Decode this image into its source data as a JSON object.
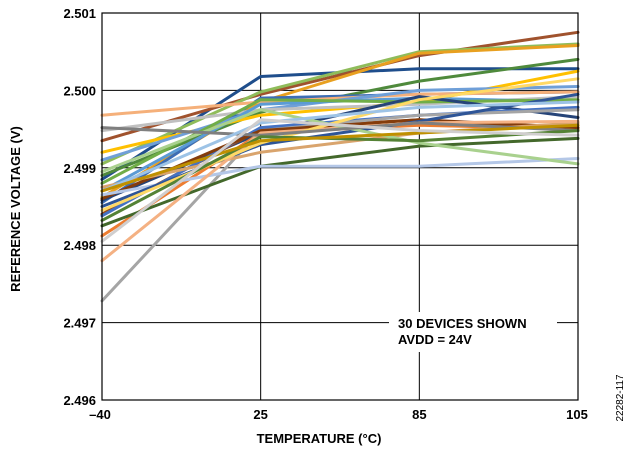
{
  "chart_data": {
    "type": "line",
    "title": "",
    "xlabel": "TEMPERATURE (°C)",
    "ylabel": "REFERENCE VOLTAGE (V)",
    "x": [
      -40,
      25,
      85,
      105
    ],
    "x_tick_labels": [
      "–40",
      "25",
      "85",
      "105"
    ],
    "y_ticks": [
      2.496,
      2.497,
      2.498,
      2.499,
      2.5,
      2.501
    ],
    "y_tick_labels": [
      "2.496",
      "2.497",
      "2.498",
      "2.499",
      "2.500",
      "2.501"
    ],
    "ylim": [
      2.496,
      2.501
    ],
    "x_scale": "categorical-equal-spacing",
    "grid": true,
    "legend": "none",
    "annotation": [
      "30 DEVICES SHOWN",
      "AVDD = 24V"
    ],
    "figure_id": "22282-117",
    "series": [
      {
        "color": "#1f4e8c",
        "values": [
          2.49885,
          2.50018,
          2.50028,
          2.50028
        ]
      },
      {
        "color": "#a0522d",
        "values": [
          2.49935,
          2.49995,
          2.50045,
          2.50075
        ]
      },
      {
        "color": "#8fbc5a",
        "values": [
          2.49905,
          2.49998,
          2.5005,
          2.5006
        ]
      },
      {
        "color": "#e8a020",
        "values": [
          2.49862,
          2.49985,
          2.50048,
          2.50058
        ]
      },
      {
        "color": "#4f8a3c",
        "values": [
          2.4989,
          2.49972,
          2.50012,
          2.5004
        ]
      },
      {
        "color": "#3d6db4",
        "values": [
          2.49855,
          2.4999,
          2.49995,
          2.49998
        ]
      },
      {
        "color": "#f5b07a",
        "values": [
          2.49968,
          2.49985,
          2.49995,
          2.49998
        ]
      },
      {
        "color": "#ffc000",
        "values": [
          2.4992,
          2.49968,
          2.49985,
          2.50025
        ]
      },
      {
        "color": "#6f9fd8",
        "values": [
          2.4991,
          2.49975,
          2.5,
          2.50005
        ]
      },
      {
        "color": "#c0c0c0",
        "values": [
          2.49948,
          2.49975,
          2.49982,
          2.49992
        ]
      },
      {
        "color": "#5b9bd5",
        "values": [
          2.4987,
          2.49982,
          2.4999,
          2.49985
        ]
      },
      {
        "color": "#70ad47",
        "values": [
          2.4988,
          2.49988,
          2.49985,
          2.49988
        ]
      },
      {
        "color": "#264478",
        "values": [
          2.49858,
          2.49945,
          2.49992,
          2.49965
        ]
      },
      {
        "color": "#9e480e",
        "values": [
          2.4984,
          2.4995,
          2.49962,
          2.49948
        ]
      },
      {
        "color": "#ed7d31",
        "values": [
          2.49812,
          2.49945,
          2.49955,
          2.4995
        ]
      },
      {
        "color": "#4472c4",
        "values": [
          2.49838,
          2.49952,
          2.49968,
          2.49978
        ]
      },
      {
        "color": "#a5a5a5",
        "values": [
          2.49728,
          2.49948,
          2.49968,
          2.49975
        ]
      },
      {
        "color": "#843c0c",
        "values": [
          2.4986,
          2.49948,
          2.49962,
          2.49952
        ]
      },
      {
        "color": "#43682b",
        "values": [
          2.49825,
          2.49902,
          2.49928,
          2.49938
        ]
      },
      {
        "color": "#b4c7e7",
        "values": [
          2.49865,
          2.49902,
          2.49902,
          2.49912
        ]
      },
      {
        "color": "#d9a46d",
        "values": [
          2.49875,
          2.4992,
          2.49945,
          2.49958
        ]
      },
      {
        "color": "#2e5597",
        "values": [
          2.4985,
          2.4993,
          2.4996,
          2.49995
        ]
      },
      {
        "color": "#f4b183",
        "values": [
          2.4978,
          2.49945,
          2.49958,
          2.4996
        ]
      },
      {
        "color": "#a9d18e",
        "values": [
          2.49895,
          2.49975,
          2.49932,
          2.49905
        ]
      },
      {
        "color": "#ffd966",
        "values": [
          2.49845,
          2.49932,
          2.49988,
          2.50015
        ]
      },
      {
        "color": "#7f7f7f",
        "values": [
          2.49952,
          2.49942,
          2.49958,
          2.49948
        ]
      },
      {
        "color": "#9dc3e6",
        "values": [
          2.4987,
          2.49958,
          2.49978,
          2.49985
        ]
      },
      {
        "color": "#548235",
        "values": [
          2.49832,
          2.4994,
          2.49935,
          2.49948
        ]
      },
      {
        "color": "#bf9000",
        "values": [
          2.4987,
          2.49935,
          2.49945,
          2.49955
        ]
      },
      {
        "color": "#d0cece",
        "values": [
          2.49805,
          2.49962,
          2.49948,
          2.49942
        ]
      }
    ]
  }
}
